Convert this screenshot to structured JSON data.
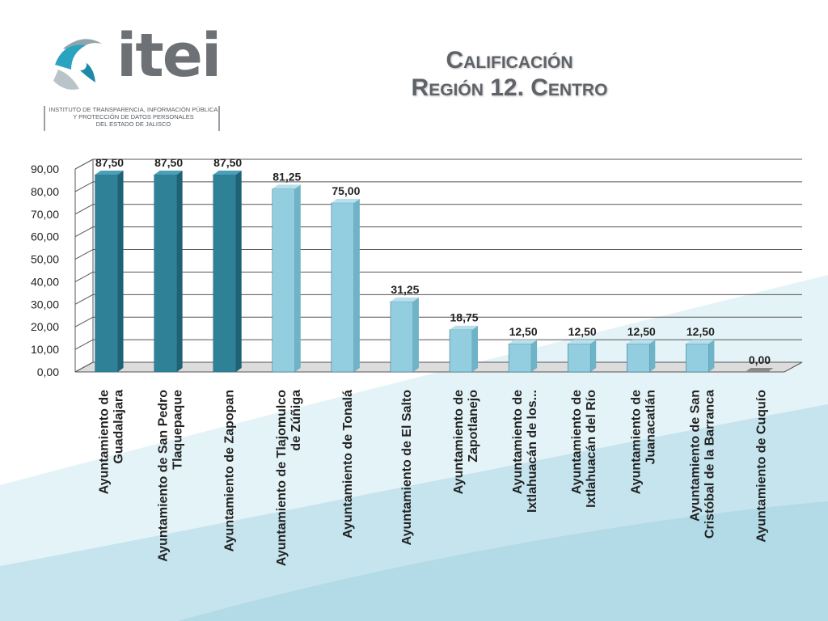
{
  "logo": {
    "word": "itei",
    "subtitle_lines": [
      "INSTITUTO DE TRANSPARENCIA, INFORMACIÓN PÚBLICA",
      "Y PROTECCIÓN DE DATOS PERSONALES",
      "DEL ESTADO DE JALISCO"
    ]
  },
  "slide": {
    "title_line1": "Calificación",
    "title_line2": "Región 12. Centro"
  },
  "colors": {
    "dark_bar": "#2f8197",
    "light_bar": "#93cde0",
    "grid": "#555555",
    "bg_accent": "#c5e4ed"
  },
  "chart_data": {
    "type": "bar",
    "title": "",
    "xlabel": "",
    "ylabel": "",
    "ylim": [
      0,
      90
    ],
    "yticks": [
      "0,00",
      "10,00",
      "20,00",
      "30,00",
      "40,00",
      "50,00",
      "60,00",
      "70,00",
      "80,00",
      "90,00"
    ],
    "grid": true,
    "categories": [
      [
        "Ayuntamiento de",
        "Guadalajara"
      ],
      [
        "Ayuntamiento de San Pedro",
        "Tlaquepaque"
      ],
      [
        "Ayuntamiento de Zapopan"
      ],
      [
        "Ayuntamiento de Tlajomulco",
        "de Zúñiga"
      ],
      [
        "Ayuntamiento de Tonalá"
      ],
      [
        "Ayuntamiento de El Salto"
      ],
      [
        "Ayuntamiento de",
        "Zapotlanejo"
      ],
      [
        "Ayuntamiento de",
        "Ixtlahuacán de los..."
      ],
      [
        "Ayuntamiento de",
        "Ixtlahuacán del Río"
      ],
      [
        "Ayuntamiento de",
        "Juanacatlán"
      ],
      [
        "Ayuntamiento de San",
        "Cristóbal de la Barranca"
      ],
      [
        "Ayuntamiento de Cuquío"
      ]
    ],
    "values": [
      87.5,
      87.5,
      87.5,
      81.25,
      75.0,
      31.25,
      18.75,
      12.5,
      12.5,
      12.5,
      12.5,
      0.0
    ],
    "data_labels": [
      "87,50",
      "87,50",
      "87,50",
      "81,25",
      "75,00",
      "31,25",
      "18,75",
      "12,50",
      "12,50",
      "12,50",
      "12,50",
      "0,00"
    ],
    "highlight": [
      true,
      true,
      true,
      false,
      false,
      false,
      false,
      false,
      false,
      false,
      false,
      false
    ]
  }
}
